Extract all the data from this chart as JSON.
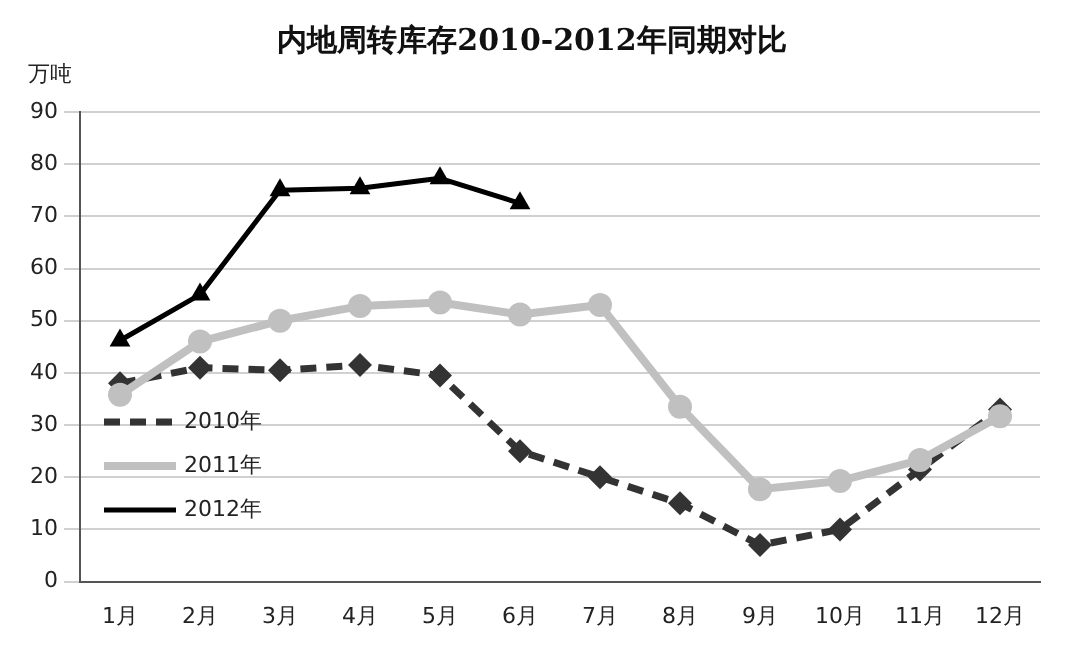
{
  "chart_data": {
    "type": "line",
    "title": "内地周转库存2010-2012年同期对比",
    "ylabel": "万吨",
    "categories": [
      "1月",
      "2月",
      "3月",
      "4月",
      "5月",
      "6月",
      "7月",
      "8月",
      "9月",
      "10月",
      "11月",
      "12月"
    ],
    "series": [
      {
        "name": "2010年",
        "color": "#333333",
        "marker": "diamond",
        "line_style": "dashed",
        "values": [
          38,
          41,
          40.5,
          41.5,
          39.5,
          25,
          20,
          15,
          7,
          10,
          21.5,
          33
        ]
      },
      {
        "name": "2011年",
        "color": "#c0c0c0",
        "marker": "circle",
        "line_style": "solid",
        "values": [
          35.8,
          46,
          50,
          52.8,
          53.5,
          51.2,
          53,
          33.5,
          17.7,
          19.3,
          23.3,
          31.7
        ]
      },
      {
        "name": "2012年",
        "color": "#000000",
        "marker": "triangle",
        "line_style": "solid",
        "values": [
          46.2,
          55,
          75,
          75.4,
          77.3,
          72.5,
          null,
          null,
          null,
          null,
          null,
          null
        ]
      }
    ],
    "ylim": [
      0,
      90
    ],
    "yticks": [
      0,
      10,
      20,
      30,
      40,
      50,
      60,
      70,
      80,
      90
    ],
    "grid": "y",
    "legend": "left"
  }
}
